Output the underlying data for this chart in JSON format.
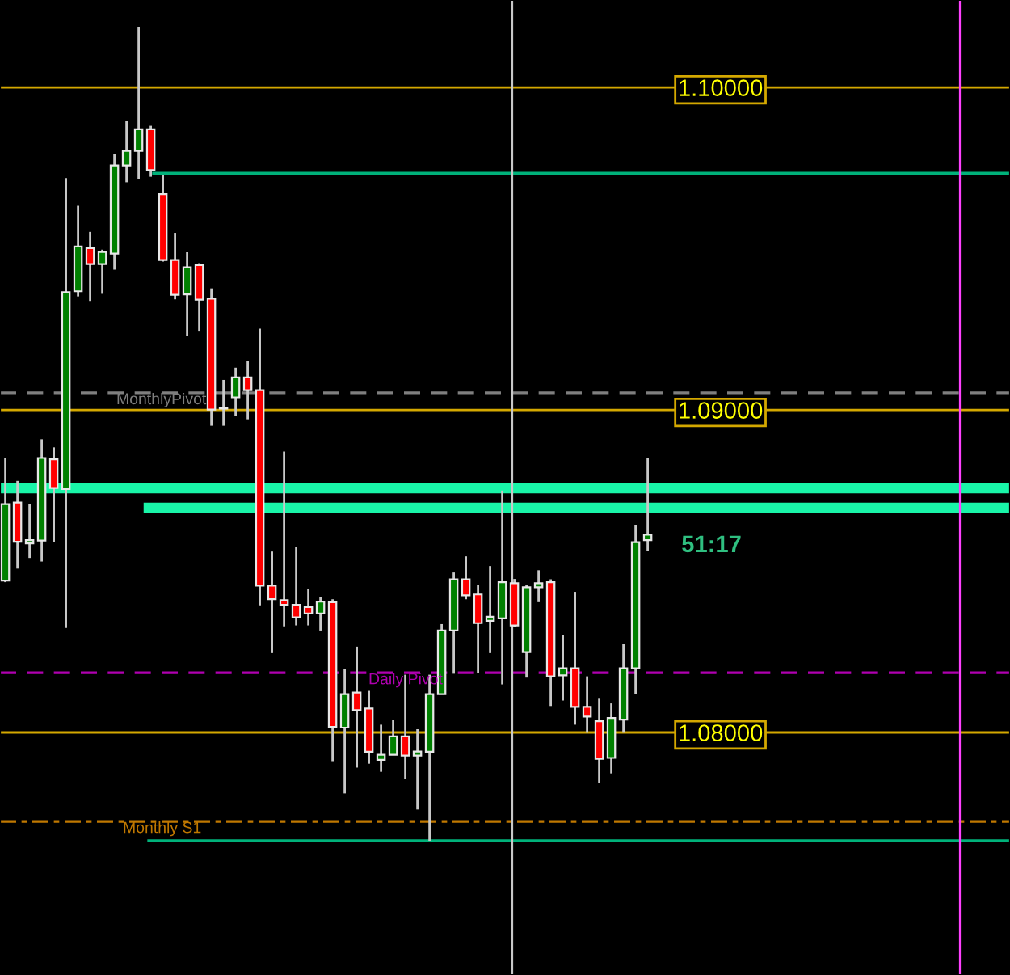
{
  "chart_data": {
    "type": "candlestick",
    "categories": [
      null,
      null,
      null,
      null,
      null,
      null,
      null,
      null,
      null,
      null,
      null,
      null,
      null,
      null,
      null,
      null,
      null,
      null,
      null,
      null,
      null,
      null,
      null,
      null,
      null,
      null,
      null,
      null,
      null,
      null,
      null,
      null,
      null,
      null,
      null,
      null,
      null,
      null,
      null,
      null,
      null,
      null,
      null,
      null,
      null,
      null,
      null,
      null,
      null,
      null,
      null,
      null,
      null,
      null
    ],
    "ohlc": [
      [
        1.08471,
        1.08851,
        1.08466,
        1.08708
      ],
      [
        1.08713,
        1.0878,
        1.08508,
        1.08591
      ],
      [
        1.08586,
        1.08708,
        1.08541,
        1.08596
      ],
      [
        1.08595,
        1.08909,
        1.0853,
        1.08851
      ],
      [
        1.08847,
        1.08884,
        1.08591,
        1.08758
      ],
      [
        1.08755,
        1.09719,
        1.08324,
        1.09365
      ],
      [
        1.09368,
        1.09633,
        1.09352,
        1.09507
      ],
      [
        1.09502,
        1.09552,
        1.09338,
        1.09452
      ],
      [
        1.09452,
        1.09497,
        1.0936,
        1.0949
      ],
      [
        1.09485,
        1.09793,
        1.09435,
        1.09758
      ],
      [
        1.09758,
        1.09895,
        1.09706,
        1.09803
      ],
      [
        1.09803,
        1.10187,
        1.09716,
        1.0987
      ],
      [
        1.0987,
        1.09881,
        1.09723,
        1.09744
      ],
      [
        1.09669,
        1.09728,
        1.0946,
        1.09465
      ],
      [
        1.09465,
        1.09549,
        1.09343,
        1.09357
      ],
      [
        1.09358,
        1.09489,
        1.0923,
        1.09442
      ],
      [
        1.09449,
        1.09455,
        1.09243,
        1.09342
      ],
      [
        1.09345,
        1.09377,
        1.08951,
        1.09001
      ],
      [
        1.09004,
        1.09093,
        1.08951,
        1.09006
      ],
      [
        1.09039,
        1.09131,
        1.08981,
        1.09101
      ],
      [
        1.09101,
        1.09153,
        1.08971,
        1.09061
      ],
      [
        1.09061,
        1.09252,
        1.08394,
        1.08455
      ],
      [
        1.08455,
        1.08561,
        1.08246,
        1.08413
      ],
      [
        1.0841,
        1.08871,
        1.08329,
        1.08396
      ],
      [
        1.08396,
        1.08576,
        1.08332,
        1.08357
      ],
      [
        1.08389,
        1.08446,
        1.08332,
        1.08369
      ],
      [
        1.08369,
        1.0842,
        1.08316,
        1.08406
      ],
      [
        1.08404,
        1.08413,
        1.07911,
        1.08017
      ],
      [
        1.08015,
        1.08196,
        1.07811,
        1.08119
      ],
      [
        1.08124,
        1.08266,
        1.07891,
        1.08069
      ],
      [
        1.08074,
        1.08129,
        1.07903,
        1.0794
      ],
      [
        1.07915,
        1.08024,
        1.07878,
        1.07931
      ],
      [
        1.07931,
        1.0804,
        1.0793,
        1.07988
      ],
      [
        1.07988,
        1.08179,
        1.07856,
        1.07928
      ],
      [
        1.07928,
        1.0801,
        1.07761,
        1.07941
      ],
      [
        1.0794,
        1.08179,
        1.07664,
        1.08119
      ],
      [
        1.08119,
        1.08336,
        1.08119,
        1.08316
      ],
      [
        1.08316,
        1.08496,
        1.08182,
        1.08475
      ],
      [
        1.08475,
        1.08546,
        1.08413,
        1.08425
      ],
      [
        1.08428,
        1.08458,
        1.08185,
        1.08339
      ],
      [
        1.08346,
        1.08516,
        1.08246,
        1.08359
      ],
      [
        1.08354,
        1.0875,
        1.08149,
        1.08466
      ],
      [
        1.08463,
        1.08476,
        1.08326,
        1.08332
      ],
      [
        1.08249,
        1.08458,
        1.0817,
        1.0845
      ],
      [
        1.0845,
        1.08503,
        1.08404,
        1.08463
      ],
      [
        1.08466,
        1.08475,
        1.08082,
        1.08174
      ],
      [
        1.08177,
        1.08302,
        1.08099,
        1.08199
      ],
      [
        1.08199,
        1.08436,
        1.08024,
        1.08079
      ],
      [
        1.08079,
        1.08174,
        1.07999,
        1.08049
      ],
      [
        1.08035,
        1.08107,
        1.07843,
        1.07918
      ],
      [
        1.07921,
        1.0809,
        1.07873,
        1.08045
      ],
      [
        1.0804,
        1.08274,
        1.07999,
        1.08199
      ],
      [
        1.08199,
        1.08642,
        1.08119,
        1.0859
      ],
      [
        1.08596,
        1.08851,
        1.08563,
        1.08613
      ]
    ],
    "ylim": [
      1.07248,
      1.10271
    ],
    "yticks": [
      {
        "value": 1.08,
        "label": "1.08000"
      },
      {
        "value": 1.09,
        "label": "1.09000"
      },
      {
        "value": 1.1,
        "label": "1.10000"
      }
    ],
    "grid": "y",
    "ref_lines": [
      {
        "axis": "y",
        "value": 1.09734,
        "color": "#00b27a",
        "line_style": "solid"
      },
      {
        "axis": "y",
        "value": 1.09053,
        "label": "MonthlyPivot",
        "color": "#7f7f7f",
        "line_style": "dashed"
      },
      {
        "axis": "y",
        "value": 1.08757,
        "color": "#19f5a8",
        "line_style": "solid"
      },
      {
        "axis": "y",
        "value": 1.08697,
        "color": "#19f5a8",
        "line_style": "solid"
      },
      {
        "axis": "y",
        "value": 1.08185,
        "label": "Daily Pivot",
        "color": "#b000b0",
        "line_style": "dashed"
      },
      {
        "axis": "y",
        "value": 1.07724,
        "label": "Monthly S1",
        "color": "#c07800",
        "line_style": "dashdot"
      },
      {
        "axis": "y",
        "value": 1.07664,
        "color": "#00b27a",
        "line_style": "solid"
      }
    ],
    "annotations": [
      "51:17"
    ]
  }
}
